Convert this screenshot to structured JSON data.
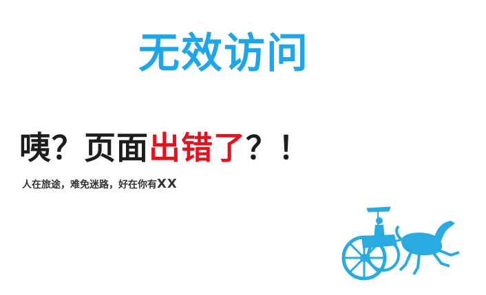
{
  "title": "无效访问",
  "headline": {
    "part1": "咦？页面",
    "part2": "出错了",
    "part3": "？！"
  },
  "subline": {
    "text": "人在旅途，难免迷路，好在你有",
    "suffix": "XX"
  },
  "colors": {
    "title": "#1ea6ea",
    "headline_dark": "#1d1d1d",
    "headline_red": "#e8101a",
    "subline": "#333333",
    "illustration": "#29abe2"
  },
  "illustration": {
    "icon": "chariot-horse-icon"
  }
}
